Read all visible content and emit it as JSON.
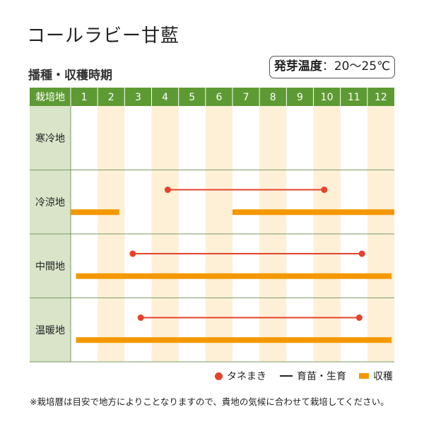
{
  "page": {
    "title": "コールラビー甘藍",
    "subtitle": "播種・収穫時期",
    "temperature": {
      "label": "発芽温度",
      "separator": "：",
      "value": "20～25℃"
    },
    "footnote": "※栽培暦は目安で地方によりことなりますので、貴地の気候に合わせて栽培してください。"
  },
  "legend": {
    "sowing": "タネまき",
    "growing": "育苗・生育",
    "harvest": "収穫"
  },
  "colors": {
    "header_bg": "#5e9a33",
    "region_bg": "#d9e4c9",
    "stripe_bg": "#fdf0d7",
    "sowing_dot": "#e5432a",
    "growing_line": "#e5432a",
    "harvest_bar": "#f39800",
    "grid_line": "#7a9a60"
  },
  "chart_data": {
    "type": "gantt",
    "header_label": "栽培地",
    "months": [
      "1",
      "2",
      "3",
      "4",
      "5",
      "6",
      "7",
      "8",
      "9",
      "10",
      "11",
      "12"
    ],
    "unit": "month",
    "regions": [
      {
        "name": "寒冷地",
        "sowing_periods": [],
        "harvest_periods": []
      },
      {
        "name": "冷涼地",
        "sowing_periods": [
          [
            3.6,
            9.4
          ]
        ],
        "harvest_periods": [
          [
            0.0,
            1.8
          ],
          [
            6.0,
            12.0
          ]
        ]
      },
      {
        "name": "中間地",
        "sowing_periods": [
          [
            2.3,
            10.8
          ]
        ],
        "harvest_periods": [
          [
            0.2,
            11.9
          ]
        ]
      },
      {
        "name": "温暖地",
        "sowing_periods": [
          [
            2.6,
            10.7
          ]
        ],
        "harvest_periods": [
          [
            0.2,
            11.9
          ]
        ]
      }
    ]
  }
}
